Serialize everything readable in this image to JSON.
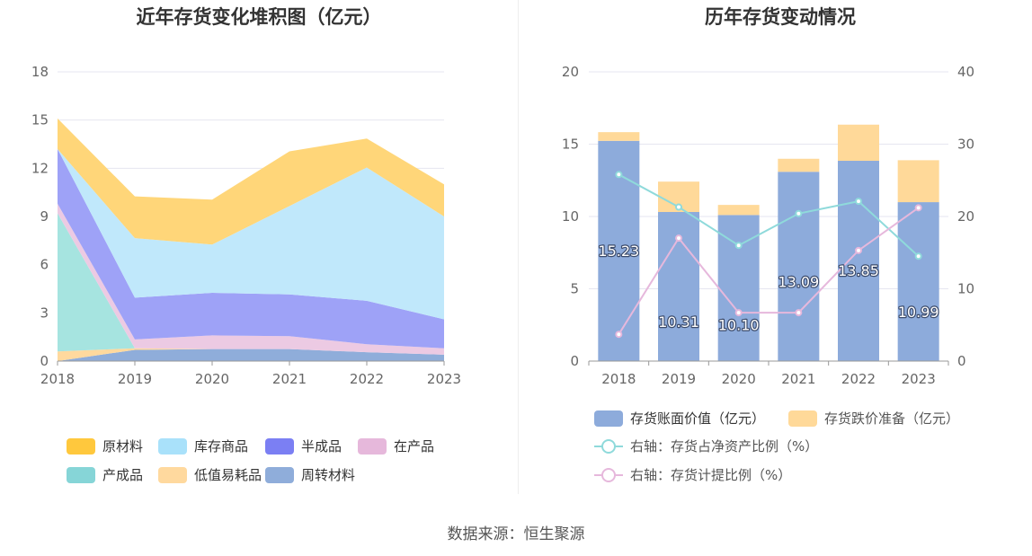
{
  "source": "数据来源：恒生聚源",
  "chart_data": [
    {
      "type": "area",
      "stacked": true,
      "title": "近年存货变化堆积图（亿元）",
      "categories": [
        "2018",
        "2019",
        "2020",
        "2021",
        "2022",
        "2023"
      ],
      "ylim": [
        0,
        18
      ],
      "yticks": [
        "0",
        "3",
        "6",
        "9",
        "12",
        "15",
        "18"
      ],
      "grid": true,
      "legend_position": "bottom",
      "series": [
        {
          "name": "周转材料",
          "color": "#8fadda",
          "values": [
            0.0,
            0.7,
            0.75,
            0.75,
            0.55,
            0.4
          ]
        },
        {
          "name": "低值易耗品",
          "color": "#ffd99e",
          "values": [
            0.6,
            0.1,
            0.0,
            0.0,
            0.0,
            0.0
          ]
        },
        {
          "name": "产成品",
          "color": "#a6e4e0",
          "values": [
            8.6,
            0.0,
            0.0,
            0.0,
            0.0,
            0.0
          ]
        },
        {
          "name": "在产品",
          "color": "#eccae3",
          "values": [
            0.6,
            0.55,
            0.85,
            0.8,
            0.5,
            0.4
          ]
        },
        {
          "name": "半成品",
          "color": "#9ea2f7",
          "values": [
            3.4,
            2.6,
            2.65,
            2.6,
            2.7,
            1.8
          ]
        },
        {
          "name": "库存商品",
          "color": "#c0e8fb",
          "values": [
            0.0,
            3.7,
            3.0,
            5.5,
            8.3,
            6.4
          ]
        },
        {
          "name": "原材料",
          "color": "#ffd679",
          "values": [
            1.9,
            2.6,
            2.8,
            3.4,
            1.8,
            2.0
          ]
        }
      ],
      "legend": [
        {
          "name": "原材料",
          "color": "#ffc83d"
        },
        {
          "name": "库存商品",
          "color": "#a9e1fa"
        },
        {
          "name": "半成品",
          "color": "#7b7ff3"
        },
        {
          "name": "在产品",
          "color": "#e6b8db"
        },
        {
          "name": "产成品",
          "color": "#86d5d7"
        },
        {
          "name": "低值易耗品",
          "color": "#ffd99e"
        },
        {
          "name": "周转材料",
          "color": "#8fadda"
        }
      ]
    },
    {
      "type": "bar+line",
      "title": "历年存货变动情况",
      "categories": [
        "2018",
        "2019",
        "2020",
        "2021",
        "2022",
        "2023"
      ],
      "ylim_left": [
        0,
        20
      ],
      "yticks_left": [
        "0",
        "5",
        "10",
        "15",
        "20"
      ],
      "ylim_right": [
        0,
        40
      ],
      "yticks_right": [
        "0",
        "10",
        "20",
        "30",
        "40"
      ],
      "bar_series": [
        {
          "name": "存货账面价值（亿元）",
          "color": "#8dabdb",
          "values": [
            15.23,
            10.31,
            10.1,
            13.09,
            13.85,
            10.99
          ]
        },
        {
          "name": "存货跌价准备（亿元）",
          "color": "#ffd999",
          "values": [
            0.6,
            2.1,
            0.7,
            0.9,
            2.5,
            2.9
          ]
        }
      ],
      "bar_labels": [
        "15.23",
        "10.31",
        "10.10",
        "13.09",
        "13.85",
        "10.99"
      ],
      "line_series": [
        {
          "name": "右轴：存货占净资产比例（%）",
          "color": "#8fdadb",
          "values": [
            25.8,
            21.3,
            16.0,
            20.4,
            22.1,
            14.5
          ]
        },
        {
          "name": "右轴：存货计提比例（%）",
          "color": "#e6b8dc",
          "values": [
            3.7,
            17.0,
            6.7,
            6.7,
            15.3,
            21.2
          ]
        }
      ]
    }
  ]
}
